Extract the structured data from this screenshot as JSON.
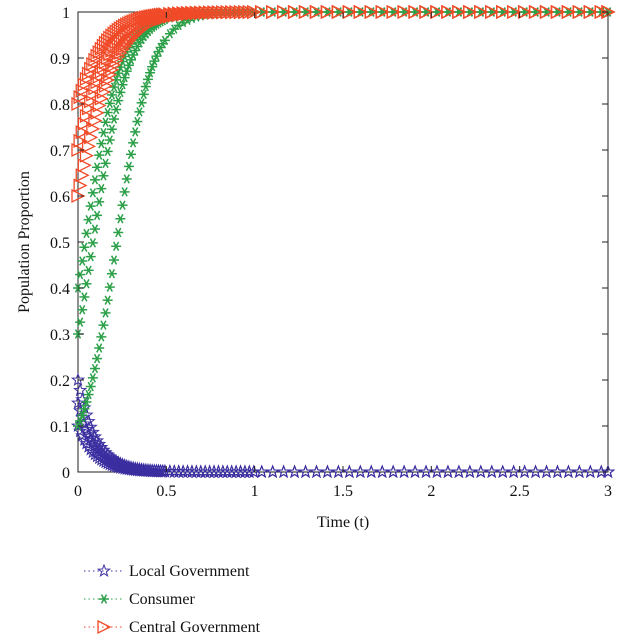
{
  "chart_data": {
    "type": "scatter",
    "xlabel": "Time (t)",
    "ylabel": "Population Proportion",
    "xlim": [
      0,
      3
    ],
    "ylim": [
      0,
      1
    ],
    "xticks": [
      "0",
      "0.5",
      "1",
      "1.5",
      "2",
      "2.5",
      "3"
    ],
    "yticks": [
      "0",
      "0.1",
      "0.2",
      "0.3",
      "0.4",
      "0.5",
      "0.6",
      "0.7",
      "0.8",
      "0.9",
      "1"
    ],
    "grid": false,
    "legend_position": "bottom-left, below axes",
    "series": [
      {
        "name": "Local Government",
        "marker": "star",
        "color": "#3b2ea0",
        "runs": [
          {
            "y0": 0.2,
            "y_end": 0.0,
            "rate": 10
          },
          {
            "y0": 0.15,
            "y_end": 0.0,
            "rate": 10
          },
          {
            "y0": 0.1,
            "y_end": 0.0,
            "rate": 10
          }
        ]
      },
      {
        "name": "Consumer",
        "marker": "asterisk",
        "color": "#2ca048",
        "runs": [
          {
            "y0": 0.4,
            "y_end": 1.0,
            "rate": 10
          },
          {
            "y0": 0.3,
            "y_end": 1.0,
            "rate": 10
          },
          {
            "y0": 0.1,
            "y_end": 1.0,
            "rate": 10
          }
        ]
      },
      {
        "name": "Central Government",
        "marker": "triangle-right",
        "color": "#f04a28",
        "runs": [
          {
            "y0": 0.8,
            "y_end": 1.0,
            "rate": 8
          },
          {
            "y0": 0.7,
            "y_end": 1.0,
            "rate": 8
          },
          {
            "y0": 0.6,
            "y_end": 1.0,
            "rate": 8
          }
        ]
      }
    ]
  }
}
